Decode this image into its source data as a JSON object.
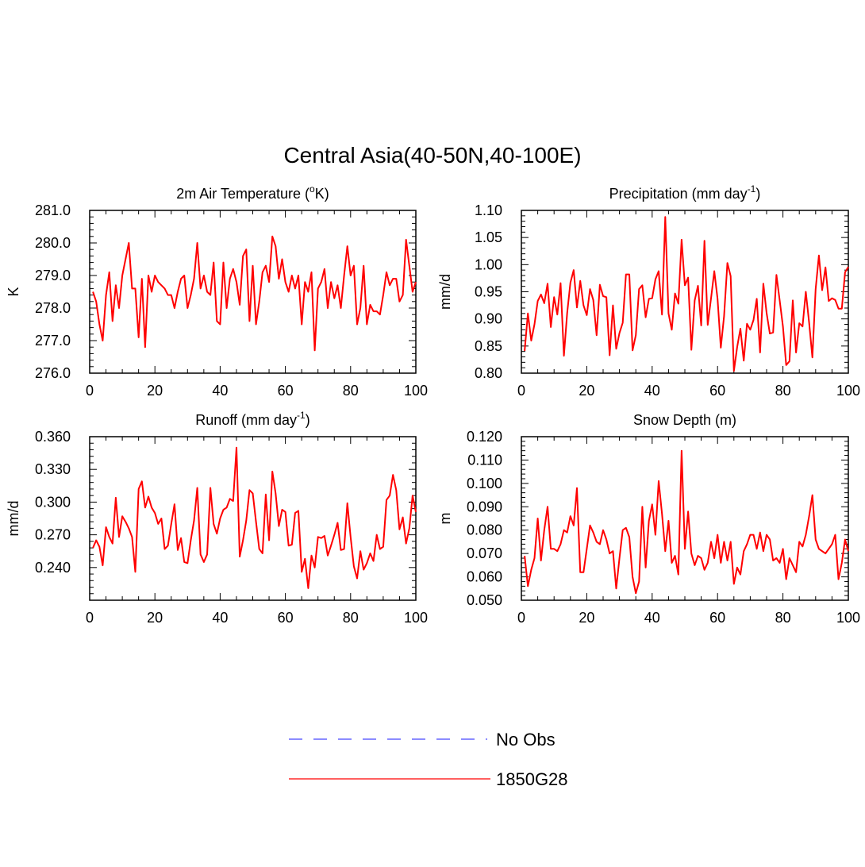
{
  "title": "Central Asia(40-50N,40-100E)",
  "legend": {
    "placement": "bottom-center",
    "items": [
      {
        "label": "No Obs",
        "color": "#6666ff",
        "style": "dashed"
      },
      {
        "label": "1850G28",
        "color": "#ff0000",
        "style": "solid"
      }
    ]
  },
  "chart_data": [
    {
      "type": "line",
      "title_main": "2m Air Temperature (",
      "title_sup": "o",
      "title_tail": "K)",
      "ylabel": "K",
      "xlim": [
        0,
        100
      ],
      "ylim": [
        276.0,
        281.0
      ],
      "x_ticks": [
        "0",
        "20",
        "40",
        "60",
        "80",
        "100"
      ],
      "y_ticks": [
        "276.0",
        "277.0",
        "278.0",
        "279.0",
        "280.0",
        "281.0"
      ],
      "series": [
        {
          "name": "1850G28",
          "color": "#ff0000",
          "x": [
            1,
            2,
            3,
            4,
            5,
            6,
            7,
            8,
            9,
            10,
            11,
            12,
            13,
            14,
            15,
            16,
            17,
            18,
            19,
            20,
            21,
            22,
            23,
            24,
            25,
            26,
            27,
            28,
            29,
            30,
            31,
            32,
            33,
            34,
            35,
            36,
            37,
            38,
            39,
            40,
            41,
            42,
            43,
            44,
            45,
            46,
            47,
            48,
            49,
            50,
            51,
            52,
            53,
            54,
            55,
            56,
            57,
            58,
            59,
            60,
            61,
            62,
            63,
            64,
            65,
            66,
            67,
            68,
            69,
            70,
            71,
            72,
            73,
            74,
            75,
            76,
            77,
            78,
            79,
            80,
            81,
            82,
            83,
            84,
            85,
            86,
            87,
            88,
            89,
            90,
            91,
            92,
            93,
            94,
            95,
            96,
            97,
            98,
            99,
            100
          ],
          "values": [
            278.5,
            278.2,
            277.5,
            277.0,
            278.4,
            279.1,
            277.6,
            278.7,
            278.0,
            279.0,
            279.5,
            280.0,
            278.6,
            278.6,
            277.1,
            278.9,
            276.8,
            279.0,
            278.5,
            279.0,
            278.8,
            278.7,
            278.6,
            278.4,
            278.4,
            278.0,
            278.5,
            278.9,
            279.0,
            278.0,
            278.4,
            278.9,
            280.0,
            278.6,
            279.0,
            278.5,
            278.4,
            279.4,
            277.6,
            277.5,
            279.4,
            278.0,
            278.9,
            279.2,
            278.8,
            278.1,
            279.6,
            279.8,
            277.6,
            279.3,
            277.5,
            278.2,
            279.1,
            279.3,
            278.8,
            280.2,
            279.9,
            278.9,
            279.5,
            278.8,
            278.5,
            279.0,
            278.6,
            279.0,
            277.5,
            278.8,
            278.5,
            279.1,
            276.7,
            278.6,
            278.8,
            279.2,
            278.0,
            278.8,
            278.3,
            278.7,
            278.0,
            279.0,
            279.9,
            279.0,
            279.3,
            277.5,
            278.0,
            279.3,
            277.5,
            278.1,
            277.9,
            277.9,
            277.8,
            278.4,
            279.1,
            278.7,
            278.9,
            278.9,
            278.2,
            278.4,
            280.1,
            279.3,
            278.5,
            278.8
          ]
        }
      ]
    },
    {
      "type": "line",
      "title_main": "Precipitation (mm day",
      "title_sup": "-1",
      "title_tail": ")",
      "ylabel": "mm/d",
      "xlim": [
        0,
        100
      ],
      "ylim": [
        0.8,
        1.1
      ],
      "x_ticks": [
        "0",
        "20",
        "40",
        "60",
        "80",
        "100"
      ],
      "y_ticks": [
        "0.80",
        "0.85",
        "0.90",
        "0.95",
        "1.00",
        "1.05",
        "1.10"
      ],
      "series": [
        {
          "name": "1850G28",
          "color": "#ff0000",
          "x": [
            1,
            2,
            3,
            4,
            5,
            6,
            7,
            8,
            9,
            10,
            11,
            12,
            13,
            14,
            15,
            16,
            17,
            18,
            19,
            20,
            21,
            22,
            23,
            24,
            25,
            26,
            27,
            28,
            29,
            30,
            31,
            32,
            33,
            34,
            35,
            36,
            37,
            38,
            39,
            40,
            41,
            42,
            43,
            44,
            45,
            46,
            47,
            48,
            49,
            50,
            51,
            52,
            53,
            54,
            55,
            56,
            57,
            58,
            59,
            60,
            61,
            62,
            63,
            64,
            65,
            66,
            67,
            68,
            69,
            70,
            71,
            72,
            73,
            74,
            75,
            76,
            77,
            78,
            79,
            80,
            81,
            82,
            83,
            84,
            85,
            86,
            87,
            88,
            89,
            90,
            91,
            92,
            93,
            94,
            95,
            96,
            97,
            98,
            99,
            100
          ],
          "values": [
            0.841,
            0.91,
            0.86,
            0.89,
            0.933,
            0.945,
            0.929,
            0.965,
            0.885,
            0.94,
            0.908,
            0.966,
            0.832,
            0.911,
            0.967,
            0.99,
            0.921,
            0.97,
            0.925,
            0.907,
            0.955,
            0.935,
            0.87,
            0.963,
            0.942,
            0.94,
            0.833,
            0.925,
            0.845,
            0.874,
            0.893,
            0.982,
            0.982,
            0.842,
            0.87,
            0.955,
            0.962,
            0.903,
            0.937,
            0.938,
            0.973,
            0.988,
            0.908,
            1.088,
            0.91,
            0.88,
            0.947,
            0.928,
            1.046,
            0.962,
            0.976,
            0.843,
            0.934,
            0.961,
            0.888,
            1.044,
            0.889,
            0.938,
            0.988,
            0.937,
            0.847,
            0.905,
            1.003,
            0.979,
            0.804,
            0.848,
            0.882,
            0.823,
            0.891,
            0.88,
            0.898,
            0.937,
            0.838,
            0.965,
            0.911,
            0.873,
            0.875,
            0.981,
            0.934,
            0.886,
            0.815,
            0.822,
            0.934,
            0.838,
            0.892,
            0.886,
            0.95,
            0.893,
            0.829,
            0.955,
            1.017,
            0.953,
            0.995,
            0.933,
            0.938,
            0.935,
            0.919,
            0.919,
            0.986,
            0.996
          ]
        }
      ]
    },
    {
      "type": "line",
      "title_main": "Runoff (mm day",
      "title_sup": "-1",
      "title_tail": ")",
      "ylabel": "mm/d",
      "xlim": [
        0,
        100
      ],
      "ylim": [
        0.21,
        0.36
      ],
      "x_ticks": [
        "0",
        "20",
        "40",
        "60",
        "80",
        "100"
      ],
      "y_ticks": [
        "0.240",
        "0.270",
        "0.300",
        "0.330",
        "0.360"
      ],
      "series": [
        {
          "name": "1850G28",
          "color": "#ff0000",
          "x": [
            1,
            2,
            3,
            4,
            5,
            6,
            7,
            8,
            9,
            10,
            11,
            12,
            13,
            14,
            15,
            16,
            17,
            18,
            19,
            20,
            21,
            22,
            23,
            24,
            25,
            26,
            27,
            28,
            29,
            30,
            31,
            32,
            33,
            34,
            35,
            36,
            37,
            38,
            39,
            40,
            41,
            42,
            43,
            44,
            45,
            46,
            47,
            48,
            49,
            50,
            51,
            52,
            53,
            54,
            55,
            56,
            57,
            58,
            59,
            60,
            61,
            62,
            63,
            64,
            65,
            66,
            67,
            68,
            69,
            70,
            71,
            72,
            73,
            74,
            75,
            76,
            77,
            78,
            79,
            80,
            81,
            82,
            83,
            84,
            85,
            86,
            87,
            88,
            89,
            90,
            91,
            92,
            93,
            94,
            95,
            96,
            97,
            98,
            99,
            100
          ],
          "values": [
            0.258,
            0.265,
            0.259,
            0.242,
            0.277,
            0.268,
            0.262,
            0.304,
            0.268,
            0.287,
            0.282,
            0.276,
            0.268,
            0.236,
            0.312,
            0.319,
            0.295,
            0.305,
            0.295,
            0.29,
            0.28,
            0.285,
            0.257,
            0.26,
            0.28,
            0.298,
            0.256,
            0.267,
            0.245,
            0.244,
            0.265,
            0.283,
            0.313,
            0.252,
            0.245,
            0.252,
            0.313,
            0.28,
            0.271,
            0.285,
            0.293,
            0.295,
            0.303,
            0.301,
            0.35,
            0.25,
            0.265,
            0.283,
            0.311,
            0.308,
            0.282,
            0.257,
            0.253,
            0.307,
            0.265,
            0.328,
            0.308,
            0.278,
            0.293,
            0.291,
            0.26,
            0.261,
            0.29,
            0.292,
            0.236,
            0.248,
            0.221,
            0.251,
            0.24,
            0.268,
            0.267,
            0.269,
            0.251,
            0.26,
            0.27,
            0.281,
            0.256,
            0.257,
            0.299,
            0.268,
            0.241,
            0.23,
            0.255,
            0.238,
            0.244,
            0.253,
            0.246,
            0.27,
            0.257,
            0.259,
            0.302,
            0.306,
            0.325,
            0.311,
            0.275,
            0.286,
            0.262,
            0.276,
            0.306,
            0.291
          ]
        }
      ]
    },
    {
      "type": "line",
      "title_main": "Snow Depth (m)",
      "title_sup": "",
      "title_tail": "",
      "ylabel": "m",
      "xlim": [
        0,
        100
      ],
      "ylim": [
        0.05,
        0.12
      ],
      "x_ticks": [
        "0",
        "20",
        "40",
        "60",
        "80",
        "100"
      ],
      "y_ticks": [
        "0.050",
        "0.060",
        "0.070",
        "0.080",
        "0.090",
        "0.100",
        "0.110",
        "0.120"
      ],
      "series": [
        {
          "name": "1850G28",
          "color": "#ff0000",
          "x": [
            1,
            2,
            3,
            4,
            5,
            6,
            7,
            8,
            9,
            10,
            11,
            12,
            13,
            14,
            15,
            16,
            17,
            18,
            19,
            20,
            21,
            22,
            23,
            24,
            25,
            26,
            27,
            28,
            29,
            30,
            31,
            32,
            33,
            34,
            35,
            36,
            37,
            38,
            39,
            40,
            41,
            42,
            43,
            44,
            45,
            46,
            47,
            48,
            49,
            50,
            51,
            52,
            53,
            54,
            55,
            56,
            57,
            58,
            59,
            60,
            61,
            62,
            63,
            64,
            65,
            66,
            67,
            68,
            69,
            70,
            71,
            72,
            73,
            74,
            75,
            76,
            77,
            78,
            79,
            80,
            81,
            82,
            83,
            84,
            85,
            86,
            87,
            88,
            89,
            90,
            91,
            92,
            93,
            94,
            95,
            96,
            97,
            98,
            99,
            100
          ],
          "values": [
            0.069,
            0.056,
            0.063,
            0.068,
            0.085,
            0.067,
            0.08,
            0.09,
            0.072,
            0.072,
            0.071,
            0.074,
            0.08,
            0.079,
            0.086,
            0.082,
            0.098,
            0.062,
            0.062,
            0.072,
            0.082,
            0.079,
            0.075,
            0.074,
            0.08,
            0.076,
            0.07,
            0.071,
            0.055,
            0.068,
            0.08,
            0.081,
            0.077,
            0.06,
            0.053,
            0.058,
            0.09,
            0.064,
            0.084,
            0.091,
            0.078,
            0.101,
            0.087,
            0.071,
            0.084,
            0.066,
            0.069,
            0.061,
            0.114,
            0.072,
            0.088,
            0.07,
            0.065,
            0.069,
            0.068,
            0.063,
            0.066,
            0.075,
            0.068,
            0.078,
            0.066,
            0.075,
            0.067,
            0.075,
            0.057,
            0.064,
            0.061,
            0.071,
            0.074,
            0.078,
            0.078,
            0.072,
            0.079,
            0.071,
            0.078,
            0.076,
            0.067,
            0.068,
            0.066,
            0.072,
            0.059,
            0.068,
            0.065,
            0.062,
            0.075,
            0.073,
            0.078,
            0.086,
            0.095,
            0.076,
            0.072,
            0.071,
            0.07,
            0.072,
            0.074,
            0.078,
            0.059,
            0.066,
            0.076,
            0.071
          ]
        }
      ]
    }
  ]
}
